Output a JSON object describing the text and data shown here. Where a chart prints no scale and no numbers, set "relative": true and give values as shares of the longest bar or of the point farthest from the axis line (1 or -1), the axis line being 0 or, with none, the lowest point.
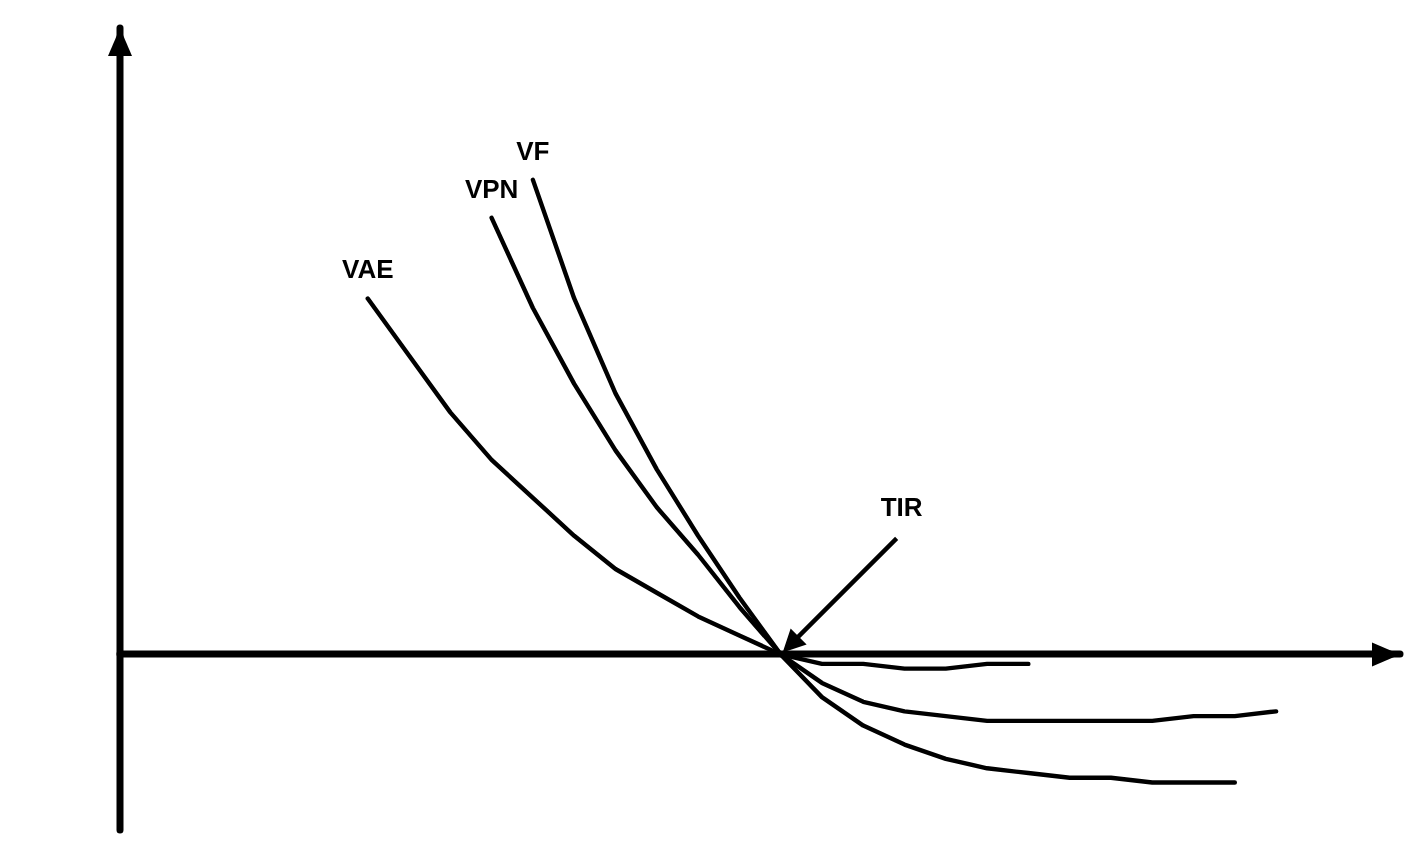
{
  "chart_data": {
    "type": "line",
    "relative": true,
    "grid": false,
    "legend": false,
    "marker": "none",
    "line_style": "solid",
    "categories": [
      null,
      null,
      null,
      null,
      null,
      null,
      null,
      null,
      null,
      null,
      null,
      null,
      null,
      null,
      null,
      null,
      null,
      null,
      null,
      null,
      null,
      null,
      null,
      null,
      null,
      null,
      null,
      null,
      null,
      null,
      null,
      null
    ],
    "series": [
      {
        "name": "VAE",
        "color": "#000000",
        "values": [
          null,
          null,
          null,
          null,
          null,
          null,
          0.75,
          0.63,
          0.51,
          0.41,
          0.33,
          0.25,
          0.18,
          0.13,
          0.08,
          0.04,
          0,
          -0.02,
          -0.02,
          -0.03,
          -0.03,
          -0.02,
          -0.02,
          null,
          null,
          null,
          null,
          null,
          null,
          null,
          null,
          null
        ]
      },
      {
        "name": "VPN",
        "color": "#000000",
        "values": [
          null,
          null,
          null,
          null,
          null,
          null,
          null,
          null,
          null,
          0.92,
          0.73,
          0.57,
          0.43,
          0.31,
          0.21,
          0.1,
          0,
          -0.06,
          -0.1,
          -0.12,
          -0.13,
          -0.14,
          -0.14,
          -0.14,
          -0.14,
          -0.14,
          -0.13,
          -0.13,
          -0.12,
          null,
          null,
          null
        ]
      },
      {
        "name": "VF",
        "color": "#000000",
        "values": [
          null,
          null,
          null,
          null,
          null,
          null,
          null,
          null,
          null,
          null,
          1.0,
          0.75,
          0.55,
          0.39,
          0.25,
          0.12,
          0,
          -0.09,
          -0.15,
          -0.19,
          -0.22,
          -0.24,
          -0.25,
          -0.26,
          -0.26,
          -0.27,
          -0.27,
          -0.27,
          null,
          null,
          null,
          null
        ]
      }
    ],
    "annotations": [
      "TIR"
    ]
  }
}
